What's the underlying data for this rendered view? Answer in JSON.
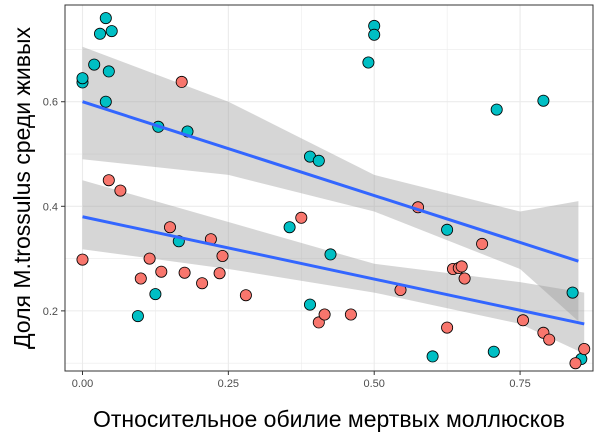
{
  "chart_data": {
    "type": "scatter",
    "xlabel": "Относительное обилие мертвых моллюсков",
    "ylabel": "Доля M.trossulus среди живых",
    "xlim": [
      -0.03,
      0.875
    ],
    "ylim": [
      0.085,
      0.785
    ],
    "x_ticks": [
      0,
      0.25,
      0.5,
      0.75
    ],
    "x_tick_labels": [
      "0.00",
      "0.25",
      "0.50",
      "0.75"
    ],
    "y_ticks": [
      0.2,
      0.4,
      0.6
    ],
    "y_tick_labels": [
      "0.2",
      "0.4",
      "0.6"
    ],
    "grid": true,
    "legend": "none",
    "colors": {
      "salmon": "#f8766d",
      "teal": "#00bfc4",
      "fit_line": "#3366ff",
      "ribbon": "#999999",
      "grid": "#ebebeb",
      "panel_border": "#333333"
    },
    "series": [
      {
        "color": "teal",
        "points": [
          [
            0.0,
            0.637
          ],
          [
            0.0,
            0.645
          ],
          [
            0.02,
            0.671
          ],
          [
            0.03,
            0.73
          ],
          [
            0.04,
            0.6
          ],
          [
            0.04,
            0.76
          ],
          [
            0.045,
            0.658
          ],
          [
            0.05,
            0.735
          ],
          [
            0.095,
            0.19
          ],
          [
            0.125,
            0.232
          ],
          [
            0.13,
            0.552
          ],
          [
            0.165,
            0.333
          ],
          [
            0.18,
            0.543
          ],
          [
            0.355,
            0.36
          ],
          [
            0.39,
            0.212
          ],
          [
            0.39,
            0.495
          ],
          [
            0.405,
            0.487
          ],
          [
            0.425,
            0.308
          ],
          [
            0.49,
            0.675
          ],
          [
            0.5,
            0.745
          ],
          [
            0.5,
            0.728
          ],
          [
            0.6,
            0.113
          ],
          [
            0.625,
            0.355
          ],
          [
            0.705,
            0.122
          ],
          [
            0.71,
            0.585
          ],
          [
            0.79,
            0.602
          ],
          [
            0.84,
            0.235
          ],
          [
            0.855,
            0.108
          ]
        ],
        "fit": {
          "x": [
            0.0,
            0.85
          ],
          "y": [
            0.6,
            0.295
          ]
        },
        "band": {
          "x": [
            0.0,
            0.25,
            0.5,
            0.75,
            0.85
          ],
          "lower": [
            0.49,
            0.46,
            0.39,
            0.28,
            0.18
          ],
          "upper": [
            0.705,
            0.6,
            0.46,
            0.39,
            0.41
          ]
        }
      },
      {
        "color": "salmon",
        "points": [
          [
            0.0,
            0.298
          ],
          [
            0.045,
            0.45
          ],
          [
            0.065,
            0.43
          ],
          [
            0.1,
            0.262
          ],
          [
            0.115,
            0.3
          ],
          [
            0.135,
            0.275
          ],
          [
            0.15,
            0.36
          ],
          [
            0.17,
            0.638
          ],
          [
            0.175,
            0.273
          ],
          [
            0.205,
            0.253
          ],
          [
            0.22,
            0.337
          ],
          [
            0.235,
            0.272
          ],
          [
            0.24,
            0.305
          ],
          [
            0.28,
            0.23
          ],
          [
            0.375,
            0.378
          ],
          [
            0.405,
            0.178
          ],
          [
            0.415,
            0.193
          ],
          [
            0.46,
            0.193
          ],
          [
            0.545,
            0.24
          ],
          [
            0.575,
            0.398
          ],
          [
            0.625,
            0.168
          ],
          [
            0.635,
            0.28
          ],
          [
            0.645,
            0.282
          ],
          [
            0.65,
            0.285
          ],
          [
            0.655,
            0.262
          ],
          [
            0.685,
            0.328
          ],
          [
            0.755,
            0.182
          ],
          [
            0.79,
            0.158
          ],
          [
            0.8,
            0.145
          ],
          [
            0.845,
            0.1
          ],
          [
            0.86,
            0.127
          ]
        ],
        "fit": {
          "x": [
            0.0,
            0.86
          ],
          "y": [
            0.38,
            0.175
          ]
        },
        "band": {
          "x": [
            0.0,
            0.25,
            0.5,
            0.75,
            0.86
          ],
          "lower": [
            0.318,
            0.28,
            0.235,
            0.175,
            0.118
          ],
          "upper": [
            0.45,
            0.37,
            0.29,
            0.255,
            0.235
          ]
        }
      }
    ]
  }
}
